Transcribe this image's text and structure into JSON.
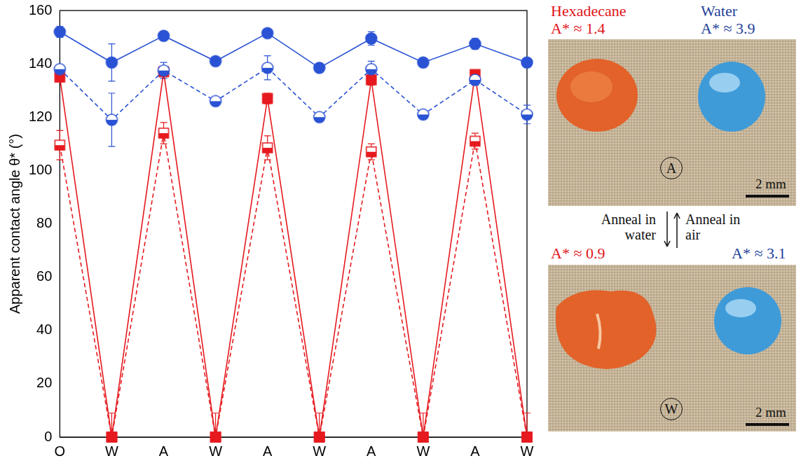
{
  "chart_data": {
    "type": "line",
    "y_label": "Apparent contact angle θ* (°)",
    "categories": [
      "O",
      "W",
      "A",
      "W",
      "A",
      "W",
      "A",
      "W",
      "A",
      "W"
    ],
    "ylim": [
      0,
      160
    ],
    "yticks": [
      0,
      20,
      40,
      60,
      80,
      100,
      120,
      140,
      160
    ],
    "grid": false,
    "series": [
      {
        "color": "#2a52d4",
        "marker": "circle",
        "line_style": "solid",
        "values": [
          152,
          140.5,
          150.5,
          141,
          151.5,
          138.5,
          149.5,
          140.5,
          147.5,
          140.5
        ],
        "errors": [
          2,
          7,
          1.5,
          1,
          1.5,
          1,
          2.5,
          1,
          2,
          1
        ]
      },
      {
        "color": "#2a52d4",
        "marker": "half_circle",
        "line_style": "dashed",
        "values": [
          138,
          119,
          137.5,
          126,
          138.5,
          120,
          138,
          121,
          134,
          121
        ],
        "errors": [
          1.5,
          10,
          3,
          1,
          4.5,
          1,
          3,
          1,
          2,
          3.5
        ]
      },
      {
        "color": "#e6191e",
        "marker": "square",
        "line_style": "solid",
        "values": [
          135,
          0,
          137,
          0,
          127,
          0,
          134,
          0,
          136,
          0
        ],
        "errors": [
          1.5,
          0,
          1.5,
          0,
          2,
          0,
          2,
          0,
          1.5,
          0
        ]
      },
      {
        "color": "#e6191e",
        "marker": "half_square",
        "line_style": "dashed",
        "values": [
          109.5,
          0,
          114,
          0,
          108.5,
          0,
          107,
          0,
          111,
          0
        ],
        "errors": [
          5.5,
          9,
          4,
          9,
          4.5,
          9,
          3,
          9,
          3,
          9
        ]
      }
    ]
  },
  "photos": {
    "headers": [
      "Hexadecane",
      "Water"
    ],
    "panels": [
      {
        "letter": "A",
        "labels": [
          "A* ≈ 1.4",
          "A* ≈ 3.9"
        ],
        "scale_bar": "2 mm"
      },
      {
        "letter": "W",
        "labels": [
          "A* ≈ 0.9",
          "A* ≈ 3.1"
        ],
        "scale_bar": "2 mm"
      }
    ],
    "arrows": [
      "Anneal in water",
      "Anneal in air"
    ]
  }
}
